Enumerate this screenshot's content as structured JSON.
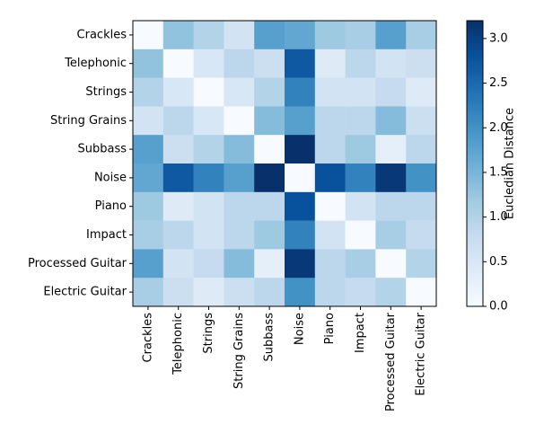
{
  "chart_data": {
    "type": "heatmap",
    "rows": [
      "Crackles",
      "Telephonic",
      "Strings",
      "String Grains",
      "Subbass",
      "Noise",
      "Piano",
      "Impact",
      "Processed Guitar",
      "Electric Guitar"
    ],
    "columns": [
      "Crackles",
      "Telephonic",
      "Strings",
      "String Grains",
      "Subbass",
      "Noise",
      "Piano",
      "Impact",
      "Processed Guitar",
      "Electric Guitar"
    ],
    "values": [
      [
        0,
        1.3,
        1.0,
        0.6,
        1.8,
        1.7,
        1.2,
        1.1,
        1.8,
        1.1
      ],
      [
        1.3,
        0,
        0.5,
        0.9,
        0.7,
        2.7,
        0.4,
        0.9,
        0.6,
        0.7
      ],
      [
        1.0,
        0.5,
        0,
        0.5,
        1.0,
        2.2,
        0.6,
        0.6,
        0.8,
        0.4
      ],
      [
        0.6,
        0.9,
        0.5,
        0,
        1.4,
        1.8,
        0.9,
        0.9,
        1.4,
        0.7
      ],
      [
        1.8,
        0.7,
        1.0,
        1.4,
        0,
        3.2,
        0.9,
        1.2,
        0.3,
        0.9
      ],
      [
        1.7,
        2.7,
        2.2,
        1.8,
        3.2,
        0,
        2.8,
        2.2,
        3.1,
        2.0
      ],
      [
        1.2,
        0.4,
        0.6,
        0.9,
        0.9,
        2.8,
        0,
        0.6,
        0.9,
        0.9
      ],
      [
        1.1,
        0.9,
        0.6,
        0.9,
        1.2,
        2.2,
        0.6,
        0,
        1.1,
        0.8
      ],
      [
        1.8,
        0.6,
        0.8,
        1.4,
        0.3,
        3.1,
        0.9,
        1.1,
        0,
        1.0
      ],
      [
        1.1,
        0.7,
        0.4,
        0.7,
        0.9,
        2.0,
        0.9,
        0.8,
        1.0,
        0
      ]
    ],
    "colormap": "Blues",
    "colorbar_label": "Eucledian Distance",
    "zlim": [
      0,
      3.2
    ],
    "zticks": [
      {
        "value": 0,
        "label": "0.0"
      },
      0.5,
      {
        "value": 1,
        "label": "1.0"
      },
      1.5,
      {
        "value": 2,
        "label": "2.0"
      },
      2.5,
      {
        "value": 3,
        "label": "3.0"
      }
    ]
  }
}
